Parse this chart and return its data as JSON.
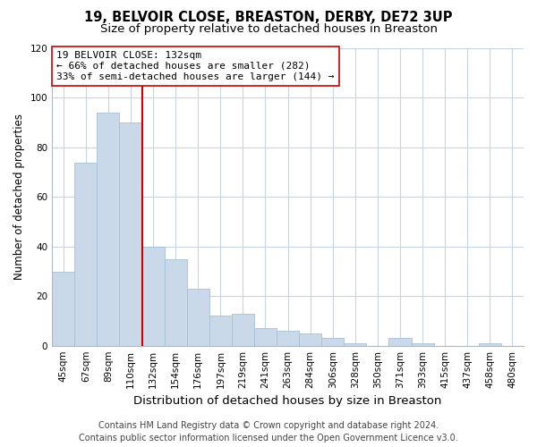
{
  "title": "19, BELVOIR CLOSE, BREASTON, DERBY, DE72 3UP",
  "subtitle": "Size of property relative to detached houses in Breaston",
  "xlabel": "Distribution of detached houses by size in Breaston",
  "ylabel": "Number of detached properties",
  "categories": [
    "45sqm",
    "67sqm",
    "89sqm",
    "110sqm",
    "132sqm",
    "154sqm",
    "176sqm",
    "197sqm",
    "219sqm",
    "241sqm",
    "263sqm",
    "284sqm",
    "306sqm",
    "328sqm",
    "350sqm",
    "371sqm",
    "393sqm",
    "415sqm",
    "437sqm",
    "458sqm",
    "480sqm"
  ],
  "values": [
    30,
    74,
    94,
    90,
    40,
    35,
    23,
    12,
    13,
    7,
    6,
    5,
    3,
    1,
    0,
    3,
    1,
    0,
    0,
    1,
    0
  ],
  "bar_color": "#c9d9ea",
  "bar_edge_color": "#a8bfd4",
  "vline_color": "#cc0000",
  "annotation_text": "19 BELVOIR CLOSE: 132sqm\n← 66% of detached houses are smaller (282)\n33% of semi-detached houses are larger (144) →",
  "annotation_box_color": "#ffffff",
  "annotation_box_edge_color": "#cc0000",
  "ylim": [
    0,
    120
  ],
  "yticks": [
    0,
    20,
    40,
    60,
    80,
    100,
    120
  ],
  "footer_line1": "Contains HM Land Registry data © Crown copyright and database right 2024.",
  "footer_line2": "Contains public sector information licensed under the Open Government Licence v3.0.",
  "bg_color": "#ffffff",
  "grid_color": "#c8d4e0",
  "title_fontsize": 10.5,
  "subtitle_fontsize": 9.5,
  "xlabel_fontsize": 9.5,
  "ylabel_fontsize": 8.5,
  "tick_fontsize": 7.5,
  "annotation_fontsize": 8,
  "footer_fontsize": 7
}
